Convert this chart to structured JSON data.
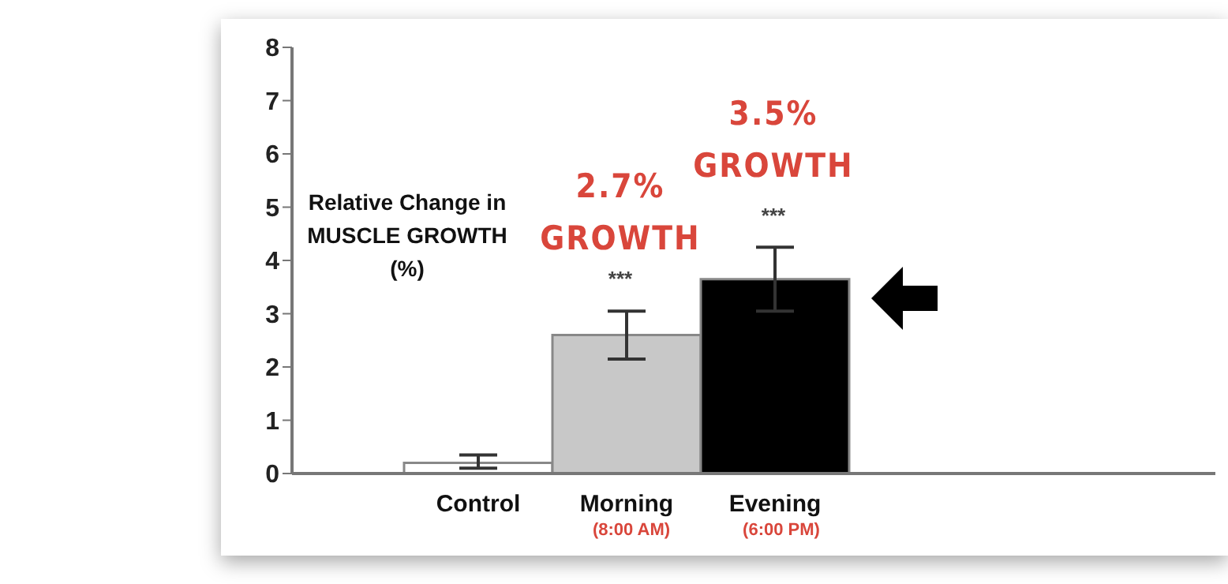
{
  "chart_data": {
    "type": "bar",
    "ylabel": "Relative Change in\nMUSCLE GROWTH\n(%)",
    "categories": [
      "Control",
      "Morning",
      "Evening"
    ],
    "values": [
      0.2,
      2.6,
      3.65
    ],
    "errors": [
      [
        0.1,
        0.35
      ],
      0.45,
      0.6
    ],
    "colors": [
      "#ffffff",
      "#c8c8c8",
      "#000000"
    ],
    "ylim": [
      0,
      8
    ],
    "yticks": [
      0,
      1,
      2,
      3,
      4,
      5,
      6,
      7,
      8
    ],
    "annotations": [
      "2.7%\nGROWTH",
      "***",
      "3.5%\nGROWTH",
      "***",
      "(8:00 AM)",
      "(6:00 PM)"
    ],
    "grid": false,
    "legend": false
  }
}
